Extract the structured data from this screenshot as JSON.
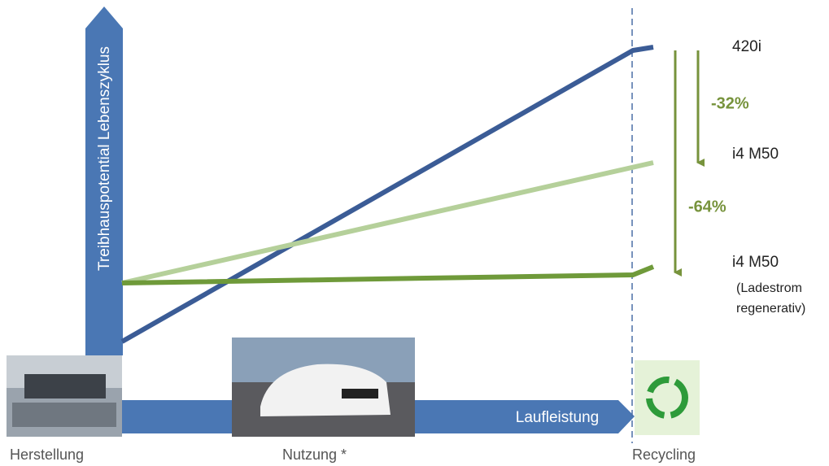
{
  "axes": {
    "y_label": "Treibhauspotential Lebenszyklus",
    "x_label": "Laufleistung"
  },
  "phases": [
    "Herstellung",
    "Nutzung *",
    "Recycling"
  ],
  "vehicles": [
    {
      "name": "420i"
    },
    {
      "name": "i4 M50"
    },
    {
      "name": "i4 M50",
      "note_lines": [
        "(Ladestrom",
        "regenerativ)"
      ]
    }
  ],
  "reductions": [
    "-32%",
    "-64%"
  ]
}
